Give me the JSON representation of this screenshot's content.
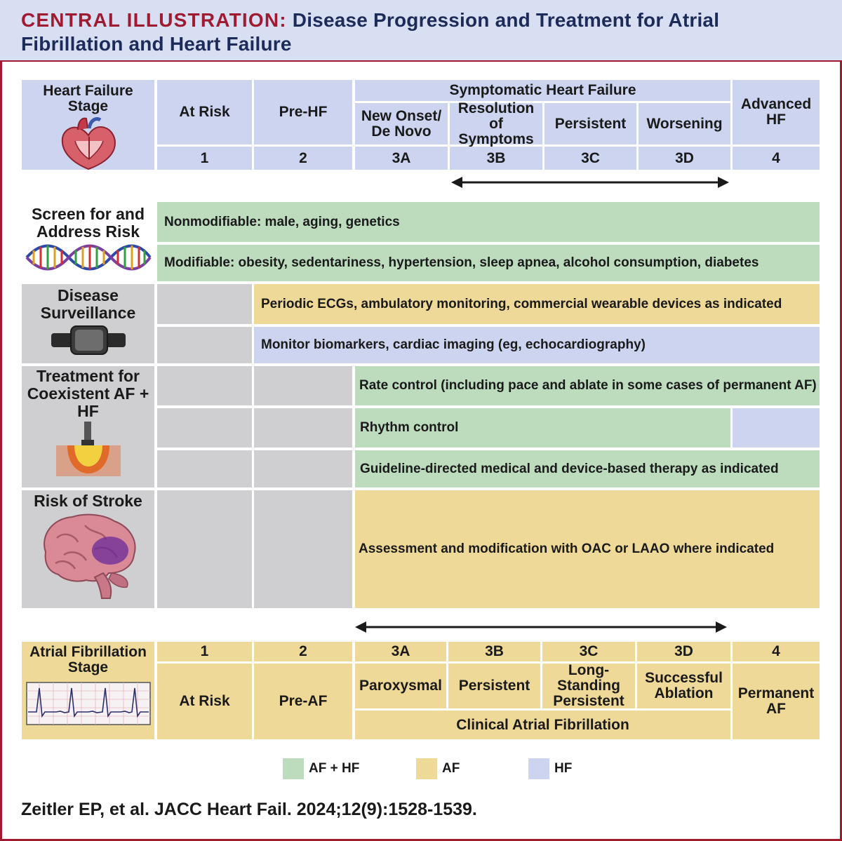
{
  "title": {
    "prefix": "CENTRAL ILLUSTRATION:",
    "line1": " Disease Progression and Treatment for Atrial",
    "line2": "Fibrillation and Heart Failure"
  },
  "hf_stage": {
    "label": "Heart Failure Stage",
    "symptomatic_header": "Symptomatic Heart Failure",
    "stages": [
      {
        "name": "At Risk",
        "num": "1"
      },
      {
        "name": "Pre-HF",
        "num": "2"
      },
      {
        "name": "New Onset/ De Novo",
        "num": "3A"
      },
      {
        "name": "Resolution of Symptoms",
        "num": "3B"
      },
      {
        "name": "Persistent",
        "num": "3C"
      },
      {
        "name": "Worsening",
        "num": "3D"
      },
      {
        "name": "Advanced HF",
        "num": "4"
      }
    ]
  },
  "categories": {
    "screen": {
      "label": "Screen for and Address Risk",
      "rows": [
        "Nonmodifiable: male, aging, genetics",
        "Modifiable: obesity, sedentariness, hypertension, sleep apnea, alcohol consumption, diabetes"
      ]
    },
    "surveillance": {
      "label": "Disease Surveillance",
      "rows": [
        "Periodic ECGs, ambulatory monitoring, commercial wearable devices as indicated",
        "Monitor biomarkers, cardiac imaging (eg, echocardiography)"
      ]
    },
    "treatment": {
      "label": "Treatment for Coexistent AF + HF",
      "rows": [
        "Rate control (including pace and ablate in some cases of permanent AF)",
        "Rhythm control",
        "Guideline-directed medical and device-based therapy as indicated"
      ]
    },
    "stroke": {
      "label": "Risk of Stroke",
      "rows": [
        "Assessment and modification with OAC or LAAO where indicated"
      ]
    }
  },
  "af_stage": {
    "label": "Atrial Fibrillation Stage",
    "clinical_header": "Clinical Atrial Fibrillation",
    "stages": [
      {
        "name": "At Risk",
        "num": "1"
      },
      {
        "name": "Pre-AF",
        "num": "2"
      },
      {
        "name": "Paroxysmal",
        "num": "3A"
      },
      {
        "name": "Persistent",
        "num": "3B"
      },
      {
        "name": "Long-Standing Persistent",
        "num": "3C"
      },
      {
        "name": "Successful Ablation",
        "num": "3D"
      },
      {
        "name": "Permanent AF",
        "num": "4"
      }
    ]
  },
  "legend": [
    {
      "label": "AF + HF",
      "color": "#bcdcbd"
    },
    {
      "label": "AF",
      "color": "#efd999"
    },
    {
      "label": "HF",
      "color": "#ccd4ef"
    }
  ],
  "icons": [
    "heart-icon",
    "dna-icon",
    "smartwatch-icon",
    "ablation-catheter-icon",
    "brain-icon",
    "ecg-icon"
  ],
  "citation": "Zeitler EP, et al. JACC Heart Fail. 2024;12(9):1528-1539."
}
